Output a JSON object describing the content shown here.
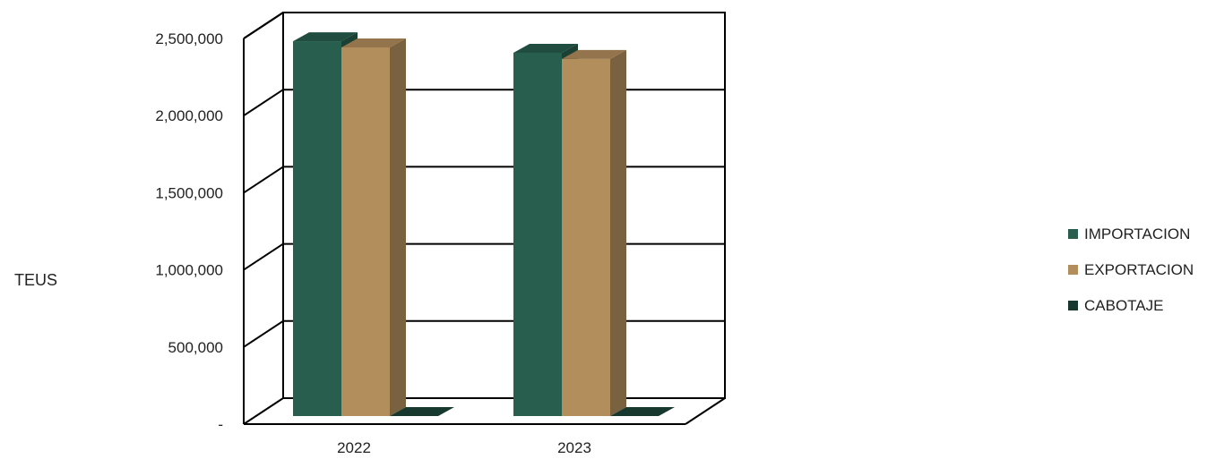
{
  "chart_data": {
    "type": "bar",
    "subtype": "3d-clustered-column",
    "ylabel": "TEUS",
    "xlabel": "",
    "categories": [
      "2022",
      "2023"
    ],
    "series": [
      {
        "name": "IMPORTACION",
        "values": [
          2430000,
          2355000
        ],
        "color": "#275E4D"
      },
      {
        "name": "EXPORTACION",
        "values": [
          2390000,
          2315000
        ],
        "color": "#B38E5D"
      },
      {
        "name": "CABOTAJE",
        "values": [
          0,
          0
        ],
        "color": "#16382E"
      }
    ],
    "ylim": [
      0,
      2500000
    ],
    "yticks": [
      0,
      500000,
      1000000,
      1500000,
      2000000,
      2500000
    ],
    "ytick_labels": [
      "-",
      "500,000",
      "1,000,000",
      "1,500,000",
      "2,000,000",
      "2,500,000"
    ],
    "grid": true,
    "legend_position": "right"
  }
}
